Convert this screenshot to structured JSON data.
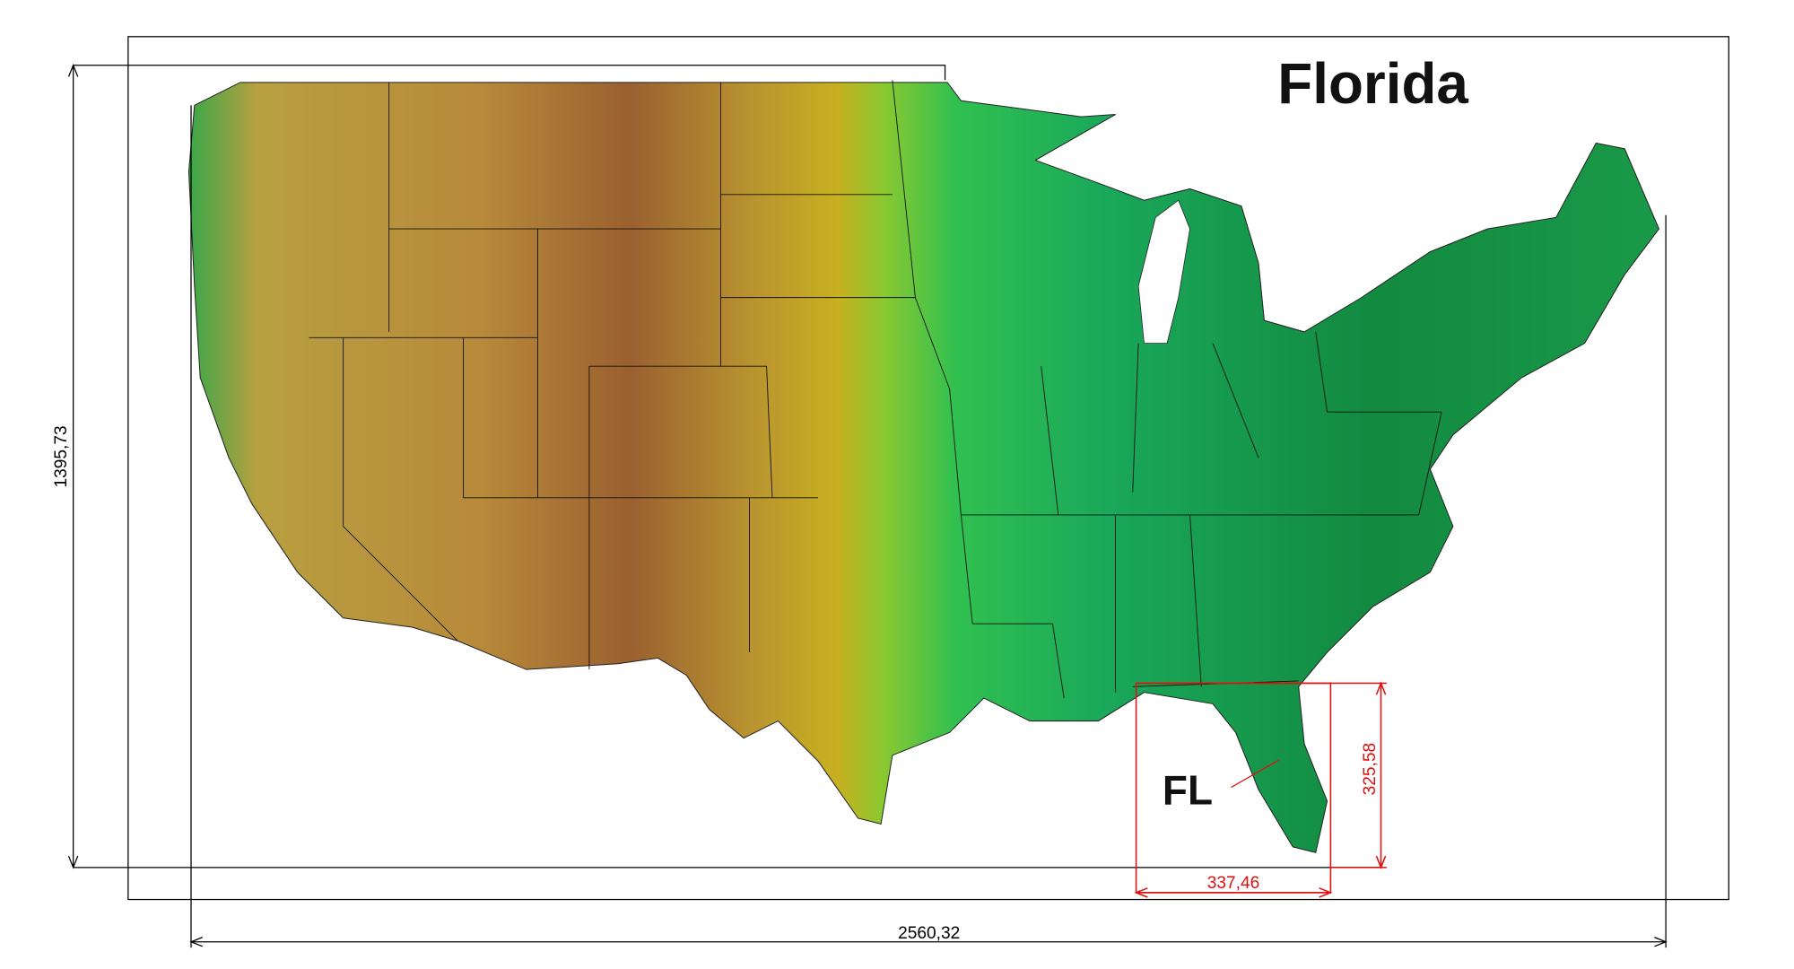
{
  "title": "Florida",
  "state_label": "FL",
  "dimensions": {
    "total_width": "2560,32",
    "total_height": "1395,73",
    "florida_width": "337,46",
    "florida_height": "325,58"
  }
}
